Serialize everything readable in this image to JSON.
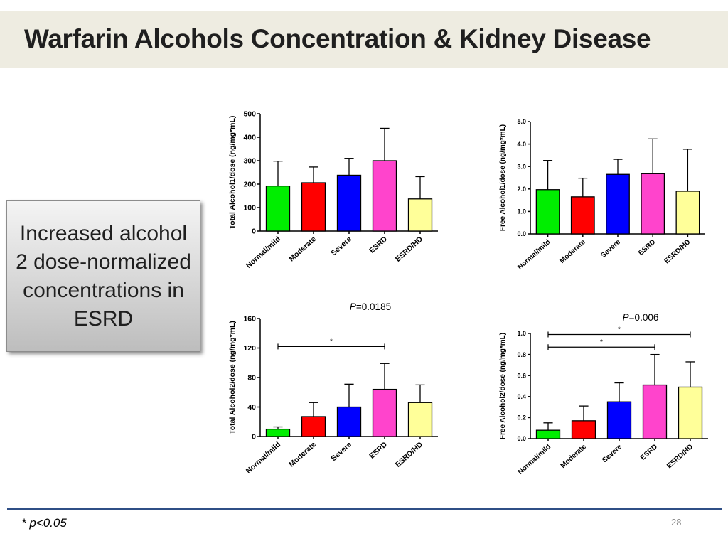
{
  "slide": {
    "title": "Warfarin Alcohols Concentration & Kidney Disease",
    "callout": "Increased alcohol 2 dose-normalized concentrations in ESRD",
    "footnote": "* p<0.05",
    "page_number": "28"
  },
  "colors": {
    "normal_mild": "#00ee00",
    "moderate": "#ff0000",
    "severe": "#0000ff",
    "esrd": "#ff44cc",
    "esrd_hd": "#ffff99"
  },
  "chart_data": [
    {
      "type": "bar",
      "ylabel": "Total Alcohol1/dose (ng/mg*mL)",
      "categories": [
        "Normal/mild",
        "Moderate",
        "Severe",
        "ESRD",
        "ESRD/HD"
      ],
      "values": [
        192,
        206,
        238,
        300,
        137
      ],
      "error_upper": [
        298,
        273,
        310,
        438,
        232
      ],
      "ylim": [
        0,
        500
      ],
      "yticks": [
        "0",
        "100",
        "200",
        "300",
        "400",
        "500"
      ],
      "p_value": null,
      "significance": []
    },
    {
      "type": "bar",
      "ylabel": "Free Alcohol1/dose (ng/mg*mL)",
      "categories": [
        "Normal/mild",
        "Moderate",
        "Severe",
        "ESRD",
        "ESRD/HD"
      ],
      "values": [
        1.97,
        1.65,
        2.65,
        2.68,
        1.9
      ],
      "error_upper": [
        3.27,
        2.48,
        3.32,
        4.23,
        3.77
      ],
      "ylim": [
        0,
        5
      ],
      "yticks": [
        "0.0",
        "1.0",
        "2.0",
        "3.0",
        "4.0",
        "5.0"
      ],
      "p_value": null,
      "significance": []
    },
    {
      "type": "bar",
      "ylabel": "Total Alcohol2/dose (ng/mg*mL)",
      "categories": [
        "Normal/mild",
        "Moderate",
        "Severe",
        "ESRD",
        "ESRD/HD"
      ],
      "values": [
        10,
        27,
        40,
        64,
        46
      ],
      "error_upper": [
        13,
        46,
        71,
        99,
        70
      ],
      "ylim": [
        0,
        160
      ],
      "yticks": [
        "0",
        "40",
        "80",
        "120",
        "160"
      ],
      "p_prefix": "P",
      "p_value": "=0.0185",
      "significance": [
        {
          "from": "Normal/mild",
          "to": "ESRD",
          "y": 122,
          "label": "*"
        }
      ]
    },
    {
      "type": "bar",
      "ylabel": "Free Alcohol2/dose (ng/mg*mL)",
      "categories": [
        "Normal/mild",
        "Moderate",
        "Severe",
        "ESRD",
        "ESRD/HD"
      ],
      "values": [
        0.08,
        0.17,
        0.35,
        0.51,
        0.49
      ],
      "error_upper": [
        0.15,
        0.31,
        0.53,
        0.8,
        0.73
      ],
      "ylim": [
        0,
        1.0
      ],
      "yticks": [
        "0.0",
        "0.2",
        "0.4",
        "0.6",
        "0.8",
        "1.0"
      ],
      "p_prefix": "P",
      "p_value": "=0.006",
      "significance": [
        {
          "from": "Normal/mild",
          "to": "ESRD/HD",
          "y": 0.99,
          "label": "*"
        },
        {
          "from": "Normal/mild",
          "to": "ESRD",
          "y": 0.87,
          "label": "*"
        }
      ]
    }
  ]
}
